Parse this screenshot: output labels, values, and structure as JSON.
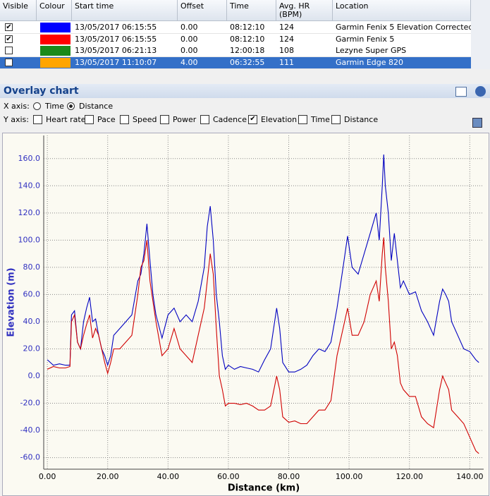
{
  "table": {
    "headers": [
      "Visible",
      "Colour",
      "Start time",
      "Offset",
      "Time",
      "Avg. HR\n(BPM)",
      "Location"
    ],
    "rows": [
      {
        "visible": true,
        "colour": "#0000ff",
        "start": "13/05/2017 06:15:55",
        "offset": "0.00",
        "time": "08:12:10",
        "hr": "124",
        "location": "Garmin Fenix 5 Elevation Corrected"
      },
      {
        "visible": true,
        "colour": "#ff0000",
        "start": "13/05/2017 06:15:55",
        "offset": "0.00",
        "time": "08:12:10",
        "hr": "124",
        "location": "Garmin Fenix 5"
      },
      {
        "visible": false,
        "colour": "#1a8a1a",
        "start": "13/05/2017 06:21:13",
        "offset": "0.00",
        "time": "12:00:18",
        "hr": "108",
        "location": "Lezyne Super GPS"
      },
      {
        "visible": false,
        "colour": "#ffa500",
        "start": "13/05/2017 11:10:07",
        "offset": "4.00",
        "time": "06:32:55",
        "hr": "111",
        "location": "Garmin Edge 820",
        "selected": true
      }
    ]
  },
  "panel": {
    "title": "Overlay chart",
    "x_axis_label": "X axis:",
    "x_options": [
      {
        "label": "Time",
        "checked": false
      },
      {
        "label": "Distance",
        "checked": true
      }
    ],
    "y_axis_label": "Y axis:",
    "y_options": [
      {
        "label": "Heart rate",
        "checked": false
      },
      {
        "label": "Pace",
        "checked": false
      },
      {
        "label": "Speed",
        "checked": false
      },
      {
        "label": "Power",
        "checked": false
      },
      {
        "label": "Cadence",
        "checked": false
      },
      {
        "label": "Elevation",
        "checked": true
      },
      {
        "label": "Time",
        "checked": false
      },
      {
        "label": "Distance",
        "checked": false
      }
    ]
  },
  "chart_data": {
    "type": "line",
    "x_label": "Distance (km)",
    "y_label": "Elevation (m)",
    "xlim": [
      -1.2,
      144.6
    ],
    "ylim": [
      -68.5,
      177
    ],
    "grid": true,
    "xticks": [
      {
        "value": 0,
        "label": "0.00"
      },
      {
        "value": 20,
        "label": "20.00"
      },
      {
        "value": 40,
        "label": "40.00"
      },
      {
        "value": 60,
        "label": "60.00"
      },
      {
        "value": 80,
        "label": "80.00"
      },
      {
        "value": 100,
        "label": "100.00"
      },
      {
        "value": 120,
        "label": "120.00"
      },
      {
        "value": 140,
        "label": "140.00"
      }
    ],
    "yticks": [
      {
        "value": -60,
        "label": "-60.0"
      },
      {
        "value": -40,
        "label": "-40.0"
      },
      {
        "value": -20,
        "label": "-20.0"
      },
      {
        "value": 0,
        "label": "0.0"
      },
      {
        "value": 20,
        "label": "20.0"
      },
      {
        "value": 40,
        "label": "40.0"
      },
      {
        "value": 60,
        "label": "60.0"
      },
      {
        "value": 80,
        "label": "80.0"
      },
      {
        "value": 100,
        "label": "100.0"
      },
      {
        "value": 120,
        "label": "120.0"
      },
      {
        "value": 140,
        "label": "140.0"
      },
      {
        "value": 160,
        "label": "160.0"
      }
    ],
    "x": [
      0,
      2,
      4,
      6,
      7.5,
      8,
      9,
      10,
      11,
      12,
      13,
      14,
      15,
      16,
      17,
      18,
      19,
      20,
      21,
      22,
      24,
      26,
      28,
      30,
      31,
      32,
      33,
      34,
      35,
      36,
      38,
      40,
      42,
      44,
      46,
      48,
      50,
      52,
      53,
      54,
      55,
      56,
      57,
      58,
      59,
      60,
      62,
      64,
      66,
      68,
      70,
      72,
      74,
      76,
      77,
      78,
      80,
      82,
      84,
      86,
      88,
      90,
      92,
      94,
      96,
      98,
      99.5,
      101,
      103,
      105,
      107,
      109,
      110,
      111,
      111.5,
      112,
      113,
      114,
      115,
      116,
      117,
      118,
      120,
      122,
      124,
      126,
      128,
      130,
      131,
      132,
      133,
      134,
      136,
      138,
      140,
      142,
      143
    ],
    "series": [
      {
        "color": "#0000c0",
        "values": [
          12,
          8,
          9,
          8,
          8,
          45,
          48,
          25,
          20,
          40,
          50,
          58,
          40,
          42,
          30,
          20,
          15,
          8,
          15,
          30,
          35,
          40,
          45,
          70,
          75,
          90,
          112,
          85,
          60,
          45,
          28,
          45,
          50,
          40,
          45,
          40,
          55,
          80,
          110,
          125,
          100,
          60,
          40,
          15,
          5,
          8,
          5,
          7,
          6,
          5,
          3,
          12,
          20,
          50,
          35,
          10,
          3,
          3,
          5,
          8,
          15,
          20,
          18,
          25,
          50,
          80,
          103,
          80,
          75,
          90,
          105,
          120,
          100,
          140,
          163,
          140,
          120,
          85,
          105,
          85,
          65,
          70,
          60,
          62,
          48,
          40,
          30,
          55,
          64,
          60,
          55,
          40,
          30,
          20,
          18,
          12,
          10
        ]
      },
      {
        "color": "#d00000",
        "values": [
          5,
          7,
          6,
          6,
          7,
          40,
          45,
          25,
          20,
          30,
          38,
          45,
          28,
          35,
          30,
          20,
          10,
          2,
          10,
          20,
          20,
          25,
          30,
          60,
          80,
          85,
          100,
          70,
          55,
          40,
          15,
          20,
          35,
          20,
          15,
          10,
          30,
          50,
          70,
          90,
          75,
          35,
          0,
          -10,
          -22,
          -20,
          -20,
          -21,
          -20,
          -22,
          -25,
          -25,
          -22,
          0,
          -10,
          -30,
          -34,
          -33,
          -35,
          -35,
          -30,
          -25,
          -25,
          -18,
          15,
          35,
          50,
          30,
          30,
          40,
          60,
          70,
          55,
          90,
          102,
          80,
          55,
          20,
          25,
          15,
          -5,
          -10,
          -15,
          -15,
          -30,
          -35,
          -38,
          -10,
          0,
          -5,
          -10,
          -25,
          -30,
          -35,
          -45,
          -55,
          -57
        ]
      }
    ]
  }
}
